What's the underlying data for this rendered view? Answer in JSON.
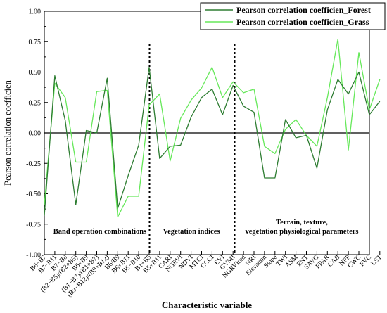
{
  "chart_data": {
    "type": "line",
    "xlabel": "Characteristic variable",
    "ylabel": "Pearson correlation coefficien",
    "ylim": [
      -1.0,
      1.0
    ],
    "y_ticks": [
      "1.00",
      "0.75",
      "0.50",
      "0.25",
      "0.00",
      "-0.25",
      "-0.50",
      "-0.75",
      "-1.00"
    ],
    "y_tick_values": [
      1.0,
      0.75,
      0.5,
      0.25,
      0.0,
      -0.25,
      -0.5,
      -0.75,
      -1.0
    ],
    "grid": false,
    "legend_position": "top-right",
    "categories": [
      "B6−B7",
      "B7−B11",
      "B7−B8",
      "(B2−B5)/(B2+B5)",
      "B6+B9",
      "(B1−B7)/(B1+B7)",
      "(B9−B12)/(B9+B12)",
      "B6/B9",
      "B6+B11",
      "B6−B10",
      "B1+B5",
      "B5+B11",
      "CARI",
      "NGRVI",
      "NDVI",
      "MTCI",
      "CCCI",
      "EVI",
      "GVMI",
      "NGRVIred",
      "NRI",
      "Elevation",
      "Slope",
      "TWI",
      "ASM",
      "ENT",
      "SAVG",
      "FPAR",
      "CAB",
      "NPP",
      "CWC",
      "FVC",
      "LST"
    ],
    "series": [
      {
        "name": "Pearson correlation coefficien_Forest",
        "color": "#2e7d32",
        "values": [
          -0.68,
          0.47,
          0.1,
          -0.59,
          0.02,
          0.0,
          0.45,
          -0.62,
          -0.35,
          -0.1,
          0.54,
          -0.21,
          -0.11,
          -0.1,
          0.13,
          0.29,
          0.36,
          0.15,
          0.39,
          0.22,
          0.17,
          -0.37,
          -0.37,
          0.11,
          -0.04,
          -0.02,
          -0.29,
          0.19,
          0.44,
          0.32,
          0.5,
          0.15,
          0.26
        ]
      },
      {
        "name": "Pearson correlation coefficien_Grass",
        "color": "#66e85a",
        "values": [
          -0.59,
          0.41,
          0.29,
          -0.24,
          -0.24,
          0.34,
          0.35,
          -0.69,
          -0.52,
          -0.52,
          0.23,
          0.32,
          -0.23,
          0.12,
          0.27,
          0.37,
          0.54,
          0.29,
          0.42,
          0.33,
          0.36,
          -0.11,
          -0.17,
          0.03,
          0.11,
          -0.02,
          -0.11,
          0.29,
          0.77,
          -0.14,
          0.66,
          0.19,
          0.44
        ]
      }
    ],
    "regions": [
      {
        "label": "Band operation combinations"
      },
      {
        "label": "Vegetation indices"
      },
      {
        "label": "Terrain, texture,"
      },
      {
        "label": "vegetation physiological parameters"
      }
    ]
  }
}
